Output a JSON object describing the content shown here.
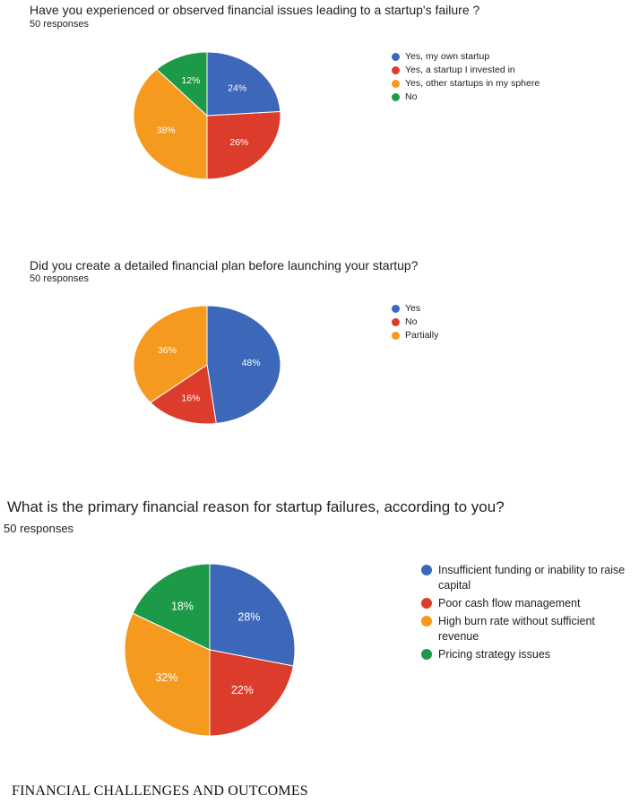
{
  "chart_data": [
    {
      "type": "pie",
      "title": "Have you experienced or observed financial issues leading to a startup's failure ?",
      "subtitle": "50 responses",
      "labels": [
        "Yes, my own startup",
        "Yes, a startup I invested in",
        "Yes, other startups in my sphere",
        "No"
      ],
      "values": [
        24,
        26,
        38,
        12
      ],
      "value_labels": [
        "24%",
        "26%",
        "38%",
        "12%"
      ],
      "colors": [
        "#3d67b8",
        "#dc3c2c",
        "#f59a1e",
        "#1d9a48"
      ],
      "legend_position": "right"
    },
    {
      "type": "pie",
      "title": "Did you create a detailed financial plan before launching your startup?",
      "subtitle": "50 responses",
      "labels": [
        "Yes",
        "No",
        "Partially"
      ],
      "values": [
        48,
        16,
        36
      ],
      "value_labels": [
        "48%",
        "16%",
        "36%"
      ],
      "colors": [
        "#3d67b8",
        "#dc3c2c",
        "#f59a1e"
      ],
      "legend_position": "right"
    },
    {
      "type": "pie",
      "title": "What is the primary financial reason for startup failures, according to you?",
      "subtitle": "50 responses",
      "labels": [
        "Insufficient funding or inability to raise capital",
        "Poor cash flow management",
        "High burn rate without sufficient revenue",
        "Pricing strategy issues"
      ],
      "values": [
        28,
        22,
        32,
        18
      ],
      "value_labels": [
        "28%",
        "22%",
        "32%",
        "18%"
      ],
      "colors": [
        "#3d67b8",
        "#dc3c2c",
        "#f59a1e",
        "#1d9a48"
      ],
      "legend_position": "right"
    }
  ],
  "footer": "FINANCIAL CHALLENGES AND OUTCOMES"
}
